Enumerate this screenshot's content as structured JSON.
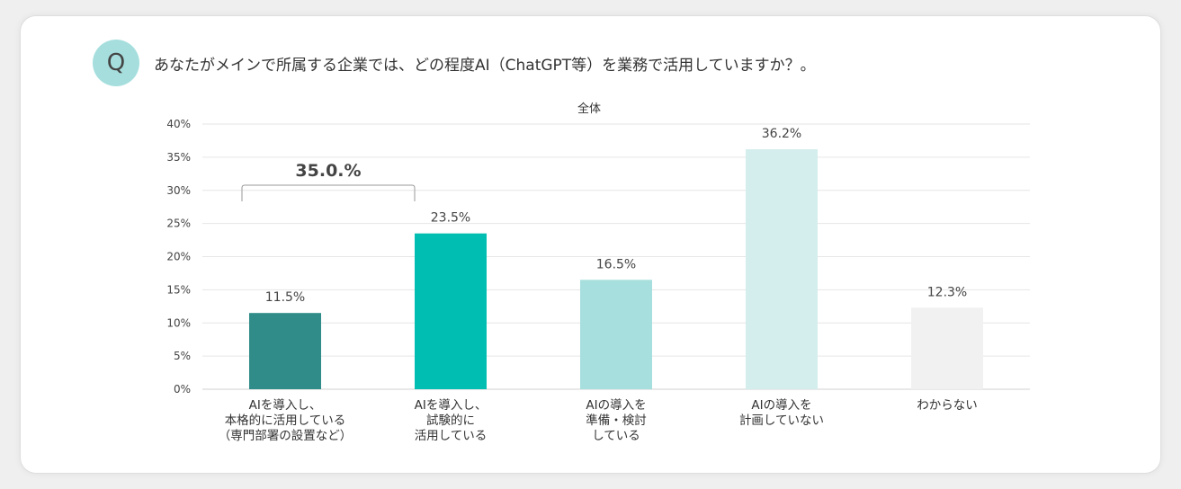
{
  "question": {
    "badge": "Q",
    "text": "あなたがメインで所属する企業では、どの程度AI（ChatGPT等）を業務で活用していますか？。"
  },
  "colors": {
    "badge": "#a6dede",
    "grid": "#e6e6e6",
    "bracket": "#9a9a9a"
  },
  "chart_data": {
    "type": "bar",
    "title": "全体",
    "ylim": [
      0,
      40
    ],
    "yticks": [
      0,
      5,
      10,
      15,
      20,
      25,
      30,
      35,
      40
    ],
    "ytick_labels": [
      "0%",
      "5%",
      "10%",
      "15%",
      "20%",
      "25%",
      "30%",
      "35%",
      "40%"
    ],
    "grid": true,
    "categories": [
      [
        "AIを導入し、",
        "本格的に活用している",
        "（専門部署の設置など）"
      ],
      [
        "AIを導入し、",
        "試験的に",
        "活用している"
      ],
      [
        "AIの導入を",
        "準備・検討",
        "している"
      ],
      [
        "AIの導入を",
        "計画していない"
      ],
      [
        "わからない"
      ]
    ],
    "values": [
      11.5,
      23.5,
      16.5,
      36.2,
      12.3
    ],
    "value_labels": [
      "11.5%",
      "23.5%",
      "16.5%",
      "36.2%",
      "12.3%"
    ],
    "bar_colors": [
      "#2f8c89",
      "#00bfb2",
      "#a6dfdd",
      "#d3eeed",
      "#f1f1f1"
    ],
    "annotation": {
      "label": "35.0.%",
      "spans": [
        0,
        1
      ]
    }
  }
}
